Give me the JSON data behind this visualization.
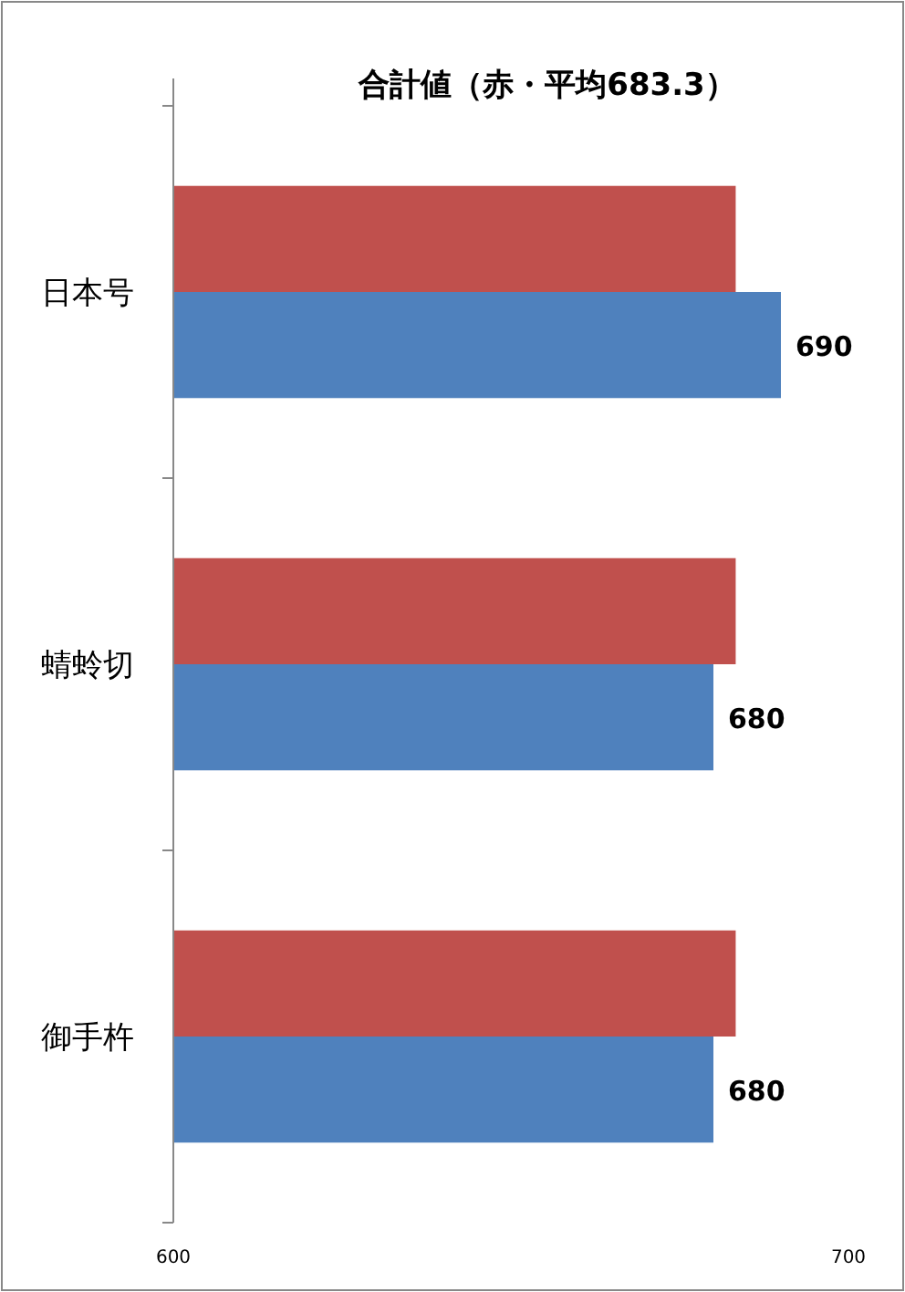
{
  "chart_data": {
    "type": "bar",
    "orientation": "horizontal",
    "title": "合計値（赤・平均683.3）",
    "categories": [
      "日本号",
      "蜻蛉切",
      "御手杵"
    ],
    "series": [
      {
        "color": "#c0504d",
        "values": [
          683.3,
          683.3,
          683.3
        ]
      },
      {
        "color": "#4f81bd",
        "values": [
          690,
          680,
          680
        ],
        "value_labels": [
          "690",
          "680",
          "680"
        ]
      }
    ],
    "xlim": [
      600,
      700
    ],
    "xticks": [
      600,
      700
    ]
  }
}
